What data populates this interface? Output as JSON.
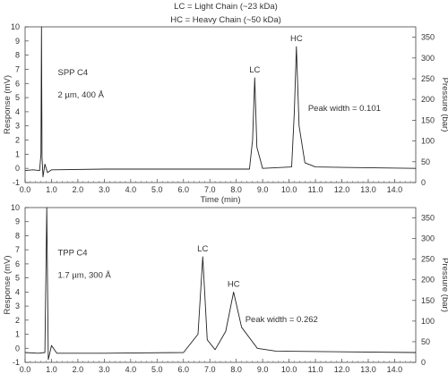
{
  "legend_lines": [
    "LC = Light Chain (~23 kDa)",
    "HC = Heavy Chain (~50 kDa)"
  ],
  "chart_data": [
    {
      "type": "line",
      "xlabel": "Time (min)",
      "ylabel": "Response (mV)",
      "y2label": "Pressure (bar)",
      "xlim": [
        0,
        14.8
      ],
      "ylim": [
        -1,
        10
      ],
      "y2lim": [
        0,
        375
      ],
      "x_ticks": [
        0.0,
        1.0,
        2.0,
        3.0,
        4.0,
        5.0,
        6.0,
        7.0,
        8.0,
        9.0,
        10.0,
        11.0,
        12.0,
        13.0,
        14.0
      ],
      "x_tick_labels": [
        "0.0",
        "1.0",
        "2.0",
        "3.0",
        "4.0",
        "5.0",
        "6.0",
        "7.0",
        "8.0",
        "9.0",
        "10.0",
        "11.0",
        "12.0",
        "13.0",
        "14.0"
      ],
      "y_ticks": [
        -1,
        0,
        1,
        2,
        3,
        4,
        5,
        6,
        7,
        8,
        9,
        10
      ],
      "y2_ticks": [
        0,
        50,
        100,
        150,
        200,
        250,
        300,
        350
      ],
      "grid": false,
      "column_text": [
        "SPP C4",
        "2 µm, 400 Å"
      ],
      "peak_width_text": "Peak width = 0.101",
      "peaks": [
        {
          "label": "LC",
          "x": 8.7,
          "height": 6.4,
          "width": 0.07
        },
        {
          "label": "HC",
          "x": 10.28,
          "height": 8.6,
          "width": 0.09
        }
      ],
      "baseline": -0.15,
      "injection_spike": {
        "x": 0.62,
        "top": 10.0
      },
      "series": [
        {
          "name": "",
          "x": [
            0.0,
            0.3,
            0.55,
            0.6,
            0.62,
            0.64,
            0.68,
            0.75,
            0.85,
            1.0,
            3.0,
            6.0,
            8.5,
            8.62,
            8.7,
            8.78,
            9.0,
            10.1,
            10.2,
            10.28,
            10.38,
            10.6,
            11.0,
            14.8
          ],
          "y": [
            -0.15,
            -0.1,
            -0.15,
            1.0,
            10.0,
            0.8,
            -0.6,
            0.3,
            -0.3,
            -0.1,
            -0.05,
            -0.05,
            -0.05,
            2.0,
            6.4,
            1.5,
            0.0,
            0.1,
            4.0,
            8.6,
            3.0,
            0.4,
            0.1,
            0.0
          ]
        }
      ]
    },
    {
      "type": "line",
      "xlabel": "Time (min)",
      "ylabel": "Response (mV)",
      "y2label": "Pressure (bar)",
      "xlim": [
        0,
        14.8
      ],
      "ylim": [
        -1,
        10
      ],
      "y2lim": [
        0,
        375
      ],
      "x_ticks": [
        0.0,
        1.0,
        2.0,
        3.0,
        4.0,
        5.0,
        6.0,
        7.0,
        8.0,
        9.0,
        10.0,
        11.0,
        12.0,
        13.0,
        14.0
      ],
      "x_tick_labels": [
        "0.0",
        "1.0",
        "2.0",
        "3.0",
        "4.0",
        "5.0",
        "6.0",
        "7.0",
        "8.0",
        "9.0",
        "10.0",
        "11.0",
        "12.0",
        "13.0",
        "14.0"
      ],
      "y_ticks": [
        -1,
        0,
        1,
        2,
        3,
        4,
        5,
        6,
        7,
        8,
        9,
        10
      ],
      "y2_ticks": [
        0,
        50,
        100,
        150,
        200,
        250,
        300,
        350
      ],
      "grid": false,
      "column_text": [
        "TPP C4",
        "1.7 µm, 300 Å"
      ],
      "peak_width_text": "Peak width = 0.262",
      "peaks": [
        {
          "label": "LC",
          "x": 6.73,
          "height": 6.5,
          "width": 0.08
        },
        {
          "label": "HC",
          "x": 7.9,
          "height": 4.0,
          "width": 0.16
        }
      ],
      "baseline": -0.3,
      "injection_spike": {
        "x": 0.82,
        "top": 10.0
      },
      "series": [
        {
          "name": "",
          "x": [
            0.0,
            0.5,
            0.75,
            0.82,
            0.88,
            1.0,
            1.2,
            3.0,
            6.0,
            6.55,
            6.73,
            6.9,
            7.2,
            7.6,
            7.9,
            8.2,
            8.8,
            9.5,
            14.8
          ],
          "y": [
            -0.3,
            -0.35,
            -0.3,
            10.0,
            -0.8,
            0.2,
            -0.35,
            -0.35,
            -0.3,
            1.0,
            6.5,
            0.6,
            -0.1,
            1.2,
            4.0,
            1.5,
            0.0,
            -0.2,
            -0.3
          ]
        }
      ]
    }
  ]
}
